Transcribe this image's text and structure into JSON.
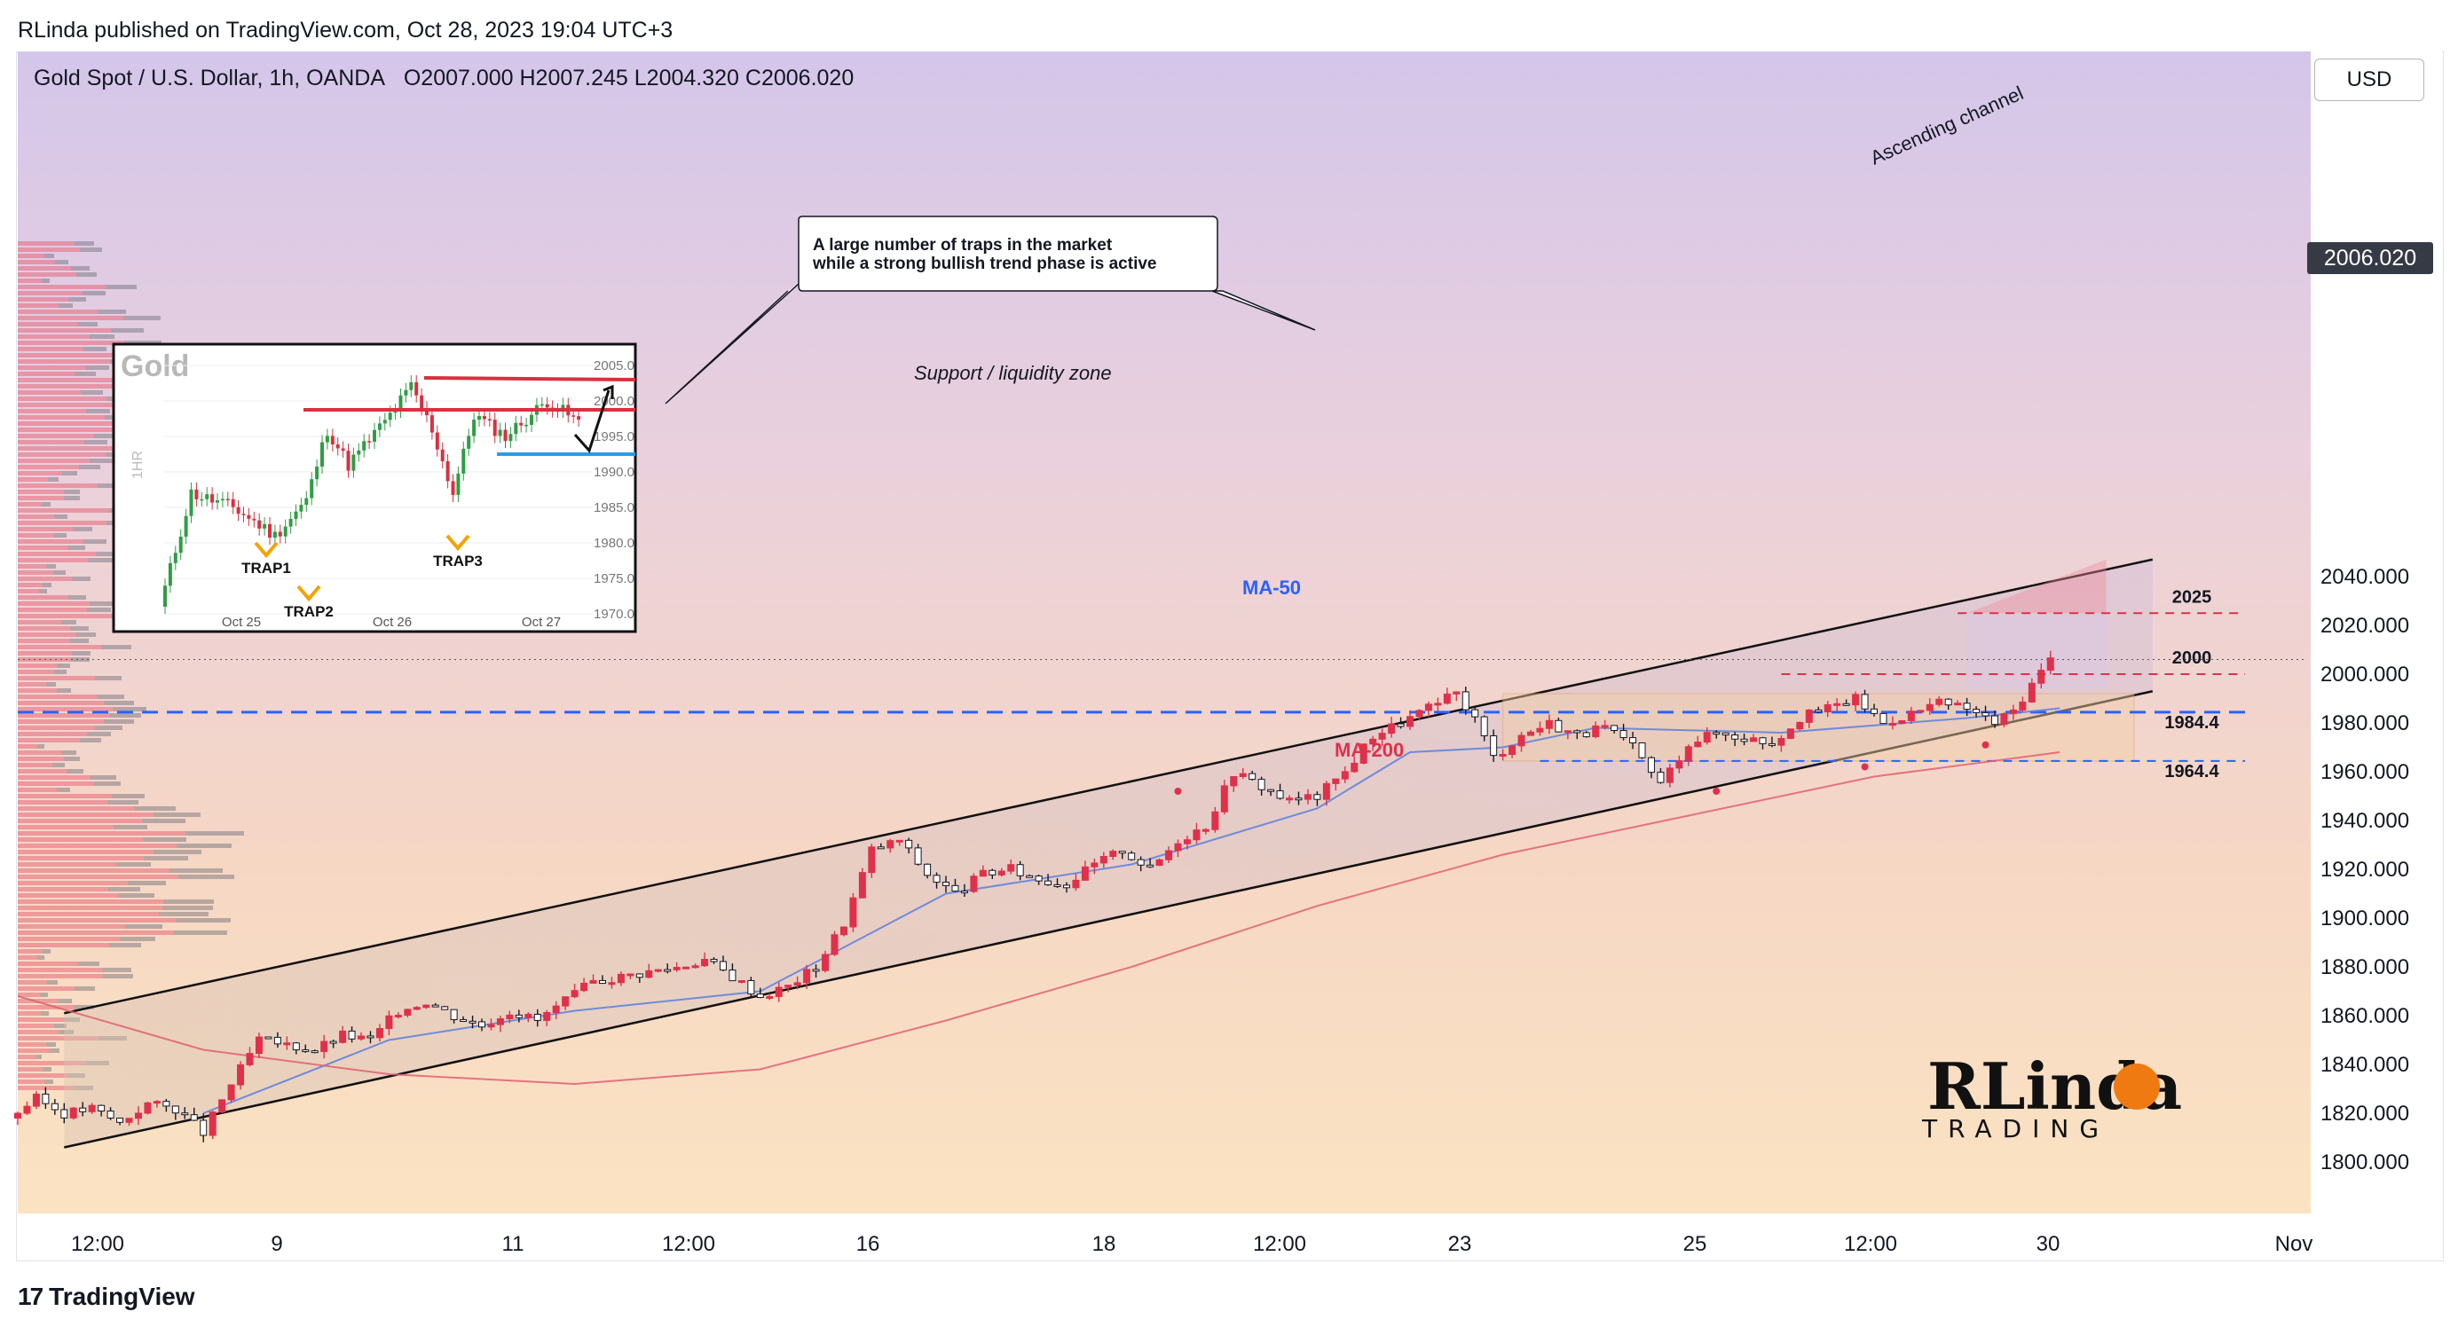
{
  "publisher": "RLinda published on TradingView.com, Oct 28, 2023 19:04 UTC+3",
  "header": {
    "symbol": "Gold Spot / U.S. Dollar, 1h, OANDA",
    "ohlc": "O2007.000  H2007.245  L2004.320  C2006.020"
  },
  "currency": "USD",
  "footer_brand": "TradingView",
  "current_price": "2006.020",
  "chart_data": {
    "type": "line",
    "title": "Gold Spot / U.S. Dollar, 1h, OANDA",
    "y_ticks": [
      "2040.000",
      "2020.000",
      "2000.000",
      "1980.000",
      "1960.000",
      "1940.000",
      "1920.000",
      "1900.000",
      "1880.000",
      "1860.000",
      "1840.000",
      "1820.000",
      "1800.000"
    ],
    "x_ticks": [
      "12:00",
      "9",
      "11",
      "12:00",
      "16",
      "18",
      "12:00",
      "23",
      "25",
      "12:00",
      "30",
      "Nov"
    ],
    "ylim": [
      1788,
      2050
    ],
    "price_path": [
      [
        0,
        1818
      ],
      [
        3,
        1826
      ],
      [
        6,
        1820
      ],
      [
        9,
        1822
      ],
      [
        12,
        1816
      ],
      [
        15,
        1824
      ],
      [
        18,
        1822
      ],
      [
        21,
        1812
      ],
      [
        24,
        1832
      ],
      [
        27,
        1850
      ],
      [
        30,
        1848
      ],
      [
        33,
        1846
      ],
      [
        36,
        1852
      ],
      [
        39,
        1850
      ],
      [
        42,
        1862
      ],
      [
        45,
        1866
      ],
      [
        48,
        1860
      ],
      [
        51,
        1856
      ],
      [
        54,
        1862
      ],
      [
        57,
        1858
      ],
      [
        60,
        1866
      ],
      [
        63,
        1874
      ],
      [
        66,
        1876
      ],
      [
        69,
        1878
      ],
      [
        72,
        1880
      ],
      [
        75,
        1883
      ],
      [
        78,
        1876
      ],
      [
        81,
        1868
      ],
      [
        84,
        1872
      ],
      [
        87,
        1880
      ],
      [
        90,
        1898
      ],
      [
        93,
        1928
      ],
      [
        96,
        1932
      ],
      [
        99,
        1918
      ],
      [
        102,
        1910
      ],
      [
        105,
        1918
      ],
      [
        108,
        1920
      ],
      [
        111,
        1916
      ],
      [
        114,
        1914
      ],
      [
        117,
        1922
      ],
      [
        120,
        1928
      ],
      [
        123,
        1920
      ],
      [
        126,
        1932
      ],
      [
        129,
        1938
      ],
      [
        132,
        1960
      ],
      [
        135,
        1954
      ],
      [
        138,
        1948
      ],
      [
        141,
        1950
      ],
      [
        144,
        1960
      ],
      [
        147,
        1975
      ],
      [
        150,
        1980
      ],
      [
        153,
        1986
      ],
      [
        156,
        1992
      ],
      [
        158,
        1982
      ],
      [
        160,
        1966
      ],
      [
        163,
        1975
      ],
      [
        166,
        1980
      ],
      [
        169,
        1975
      ],
      [
        172,
        1978
      ],
      [
        175,
        1970
      ],
      [
        178,
        1955
      ],
      [
        181,
        1972
      ],
      [
        184,
        1976
      ],
      [
        187,
        1974
      ],
      [
        190,
        1972
      ],
      [
        193,
        1982
      ],
      [
        196,
        1986
      ],
      [
        199,
        1990
      ],
      [
        202,
        1980
      ],
      [
        205,
        1984
      ],
      [
        208,
        1988
      ],
      [
        211,
        1986
      ],
      [
        214,
        1980
      ],
      [
        216,
        1985
      ],
      [
        218,
        1996
      ],
      [
        220,
        2006
      ]
    ],
    "series": [
      {
        "name": "MA-50",
        "color": "#5b7fe0",
        "points": [
          [
            20,
            1820
          ],
          [
            40,
            1850
          ],
          [
            60,
            1862
          ],
          [
            80,
            1870
          ],
          [
            100,
            1910
          ],
          [
            120,
            1922
          ],
          [
            140,
            1945
          ],
          [
            150,
            1968
          ],
          [
            160,
            1970
          ],
          [
            170,
            1978
          ],
          [
            190,
            1976
          ],
          [
            210,
            1982
          ],
          [
            220,
            1986
          ]
        ]
      },
      {
        "name": "MA-200",
        "color": "#e06070",
        "points": [
          [
            0,
            1868
          ],
          [
            20,
            1846
          ],
          [
            40,
            1836
          ],
          [
            60,
            1832
          ],
          [
            80,
            1838
          ],
          [
            100,
            1858
          ],
          [
            120,
            1880
          ],
          [
            140,
            1905
          ],
          [
            160,
            1926
          ],
          [
            180,
            1942
          ],
          [
            200,
            1958
          ],
          [
            220,
            1968
          ]
        ]
      }
    ],
    "levels": [
      {
        "label": "2025",
        "value": 2025,
        "style": "red-dashed"
      },
      {
        "label": "2000",
        "value": 2000,
        "style": "red-dashed"
      },
      {
        "label": "1984.4",
        "value": 1984.4,
        "style": "blue-dashed"
      },
      {
        "label": "1964.4",
        "value": 1964.4,
        "style": "blue-dashed"
      }
    ],
    "channel": {
      "label": "Ascending channel",
      "upper": [
        [
          5,
          1861
        ],
        [
          230,
          2047
        ]
      ],
      "lower": [
        [
          5,
          1806
        ],
        [
          230,
          1993
        ]
      ]
    },
    "zone": {
      "label": "Support / liquidity zone",
      "from": 1964.4,
      "to": 1992
    },
    "annotations": {
      "callout": [
        "A large number of traps in the market",
        "while a strong bullish trend phase is active"
      ],
      "ma50_label": "MA-50",
      "ma200_label": "MA-200"
    },
    "inset": {
      "title": "Gold",
      "timeframe": "1HR",
      "y_ticks": [
        "2005.0",
        "2000.0",
        "1995.0",
        "1990.0",
        "1985.0",
        "1980.0",
        "1975.0",
        "1970.0"
      ],
      "x_ticks": [
        "Oct 25",
        "Oct 26",
        "Oct 27"
      ],
      "traps": [
        "TRAP1",
        "TRAP2",
        "TRAP3"
      ]
    }
  },
  "watermark": {
    "brand": "RLinda",
    "sub": "TRADING"
  }
}
